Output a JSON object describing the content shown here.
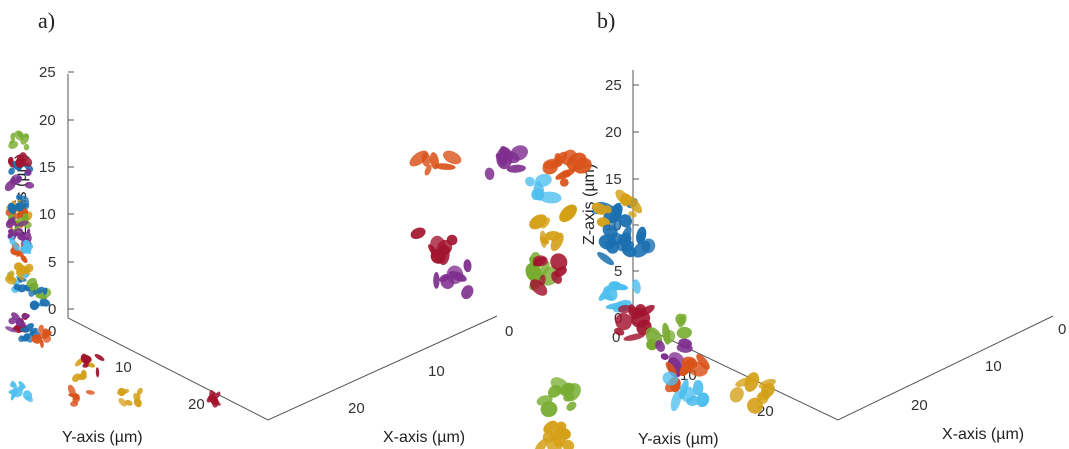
{
  "chart_data": [
    {
      "type": "scatter",
      "panel_label": "a)",
      "xlabel": "X-axis (µm)",
      "ylabel": "Y-axis (µm)",
      "zlabel": "Z-axis (µm)",
      "z_ticks": [
        "0",
        "5",
        "10",
        "15",
        "20",
        "25"
      ],
      "y_ticks": [
        "0",
        "10",
        "20"
      ],
      "x_ticks": [
        "0",
        "10",
        "20"
      ],
      "grid": false,
      "description_colors": [
        "#1f77b4",
        "#ff7f0e",
        "#d4a017",
        "#7e2f8e",
        "#77ac30",
        "#4dbeee",
        "#a2142f"
      ],
      "clusters": [
        {
          "color": "#1a6fb0",
          "x": 2,
          "y": 2,
          "z": 26
        },
        {
          "color": "#d4a017",
          "x": 3,
          "y": 3,
          "z": 22
        },
        {
          "color": "#77ac30",
          "x": 0,
          "y": 14,
          "z": 23
        },
        {
          "color": "#a2142f",
          "x": 0,
          "y": 12,
          "z": 22
        },
        {
          "color": "#d95319",
          "x": 4,
          "y": 4,
          "z": 21
        },
        {
          "color": "#7e2f8e",
          "x": 6,
          "y": 4,
          "z": 20
        },
        {
          "color": "#7e2f8e",
          "x": 0,
          "y": 0,
          "z": 25
        },
        {
          "color": "#77ac30",
          "x": 1,
          "y": 0,
          "z": 21
        },
        {
          "color": "#d95319",
          "x": 2,
          "y": 0,
          "z": 18
        },
        {
          "color": "#4dbeee",
          "x": 6,
          "y": 2,
          "z": 16
        },
        {
          "color": "#4dbeee",
          "x": 10,
          "y": 9,
          "z": 19
        },
        {
          "color": "#1a6fb0",
          "x": 14,
          "y": 5,
          "z": 18
        },
        {
          "color": "#77ac30",
          "x": 12,
          "y": 9,
          "z": 15
        },
        {
          "color": "#1a6fb0",
          "x": 12,
          "y": 9,
          "z": 14
        },
        {
          "color": "#a2142f",
          "x": 6,
          "y": 1,
          "z": 12
        },
        {
          "color": "#7e2f8e",
          "x": 5,
          "y": 0,
          "z": 12
        },
        {
          "color": "#4dbeee",
          "x": 10,
          "y": 0,
          "z": 7
        },
        {
          "color": "#1a6fb0",
          "x": 0,
          "y": 20,
          "z": 14
        },
        {
          "color": "#7e2f8e",
          "x": 0,
          "y": 18,
          "z": 12
        },
        {
          "color": "#d4a017",
          "x": 0,
          "y": 16,
          "z": 8
        },
        {
          "color": "#1a6fb0",
          "x": 10,
          "y": 10,
          "z": 9
        },
        {
          "color": "#d95319",
          "x": 11,
          "y": 10,
          "z": 9
        },
        {
          "color": "#d4a017",
          "x": 14,
          "y": 12,
          "z": 6
        },
        {
          "color": "#d95319",
          "x": 14,
          "y": 12,
          "z": 3
        },
        {
          "color": "#a2142f",
          "x": 10,
          "y": 18,
          "z": 2
        },
        {
          "color": "#d4a017",
          "x": 16,
          "y": 16,
          "z": 2
        },
        {
          "color": "#a2142f",
          "x": 20,
          "y": 22,
          "z": 1
        }
      ]
    },
    {
      "type": "scatter",
      "panel_label": "b)",
      "xlabel": "X-axis (µm)",
      "ylabel": "Y-axis (µm)",
      "zlabel": "Z-axis (µm)",
      "z_ticks": [
        "0",
        "5",
        "10",
        "15",
        "20",
        "25"
      ],
      "y_ticks": [
        "0",
        "10",
        "20"
      ],
      "x_ticks": [
        "0",
        "10",
        "20"
      ],
      "grid": false,
      "clusters": [
        {
          "color": "#7e2f8e",
          "x": 4,
          "y": 4,
          "z": 27
        },
        {
          "color": "#4dbeee",
          "x": 6,
          "y": 6,
          "z": 24
        },
        {
          "color": "#d95319",
          "x": 0,
          "y": 0,
          "z": 26
        },
        {
          "color": "#a2142f",
          "x": 2,
          "y": -2,
          "z": 20
        },
        {
          "color": "#7e2f8e",
          "x": 4,
          "y": -2,
          "z": 17
        },
        {
          "color": "#d95319",
          "x": 2,
          "y": 14,
          "z": 21
        },
        {
          "color": "#d4a017",
          "x": 8,
          "y": 6,
          "z": 21
        },
        {
          "color": "#77ac30",
          "x": 8,
          "y": 4,
          "z": 17
        },
        {
          "color": "#a2142f",
          "x": 8,
          "y": 6,
          "z": 16
        },
        {
          "color": "#1a6fb0",
          "x": 2,
          "y": 20,
          "z": 14
        },
        {
          "color": "#d4a017",
          "x": 4,
          "y": 18,
          "z": 16
        },
        {
          "color": "#1a6fb0",
          "x": 6,
          "y": 16,
          "z": 14
        },
        {
          "color": "#1a6fb0",
          "x": 0,
          "y": 24,
          "z": 9
        },
        {
          "color": "#4dbeee",
          "x": 10,
          "y": 12,
          "z": 12
        },
        {
          "color": "#a2142f",
          "x": 12,
          "y": 12,
          "z": 10
        },
        {
          "color": "#77ac30",
          "x": 14,
          "y": 0,
          "z": 8
        },
        {
          "color": "#d4a017",
          "x": 16,
          "y": -2,
          "z": 5
        },
        {
          "color": "#77ac30",
          "x": 8,
          "y": 20,
          "z": 4
        },
        {
          "color": "#7e2f8e",
          "x": 12,
          "y": 16,
          "z": 5
        },
        {
          "color": "#d95319",
          "x": 14,
          "y": 16,
          "z": 4
        },
        {
          "color": "#4dbeee",
          "x": 16,
          "y": 14,
          "z": 4
        },
        {
          "color": "#d4a017",
          "x": 16,
          "y": 22,
          "z": 0
        }
      ]
    }
  ]
}
